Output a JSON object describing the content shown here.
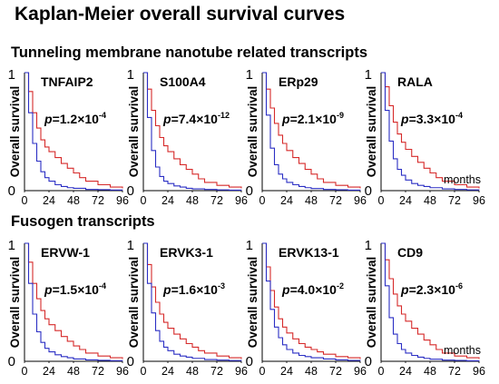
{
  "title": "Kaplan-Meier overall survival curves",
  "sections": [
    {
      "label": "Tunneling membrane nanotube related transcripts",
      "panels": [
        {
          "gene": "TNFAIP2",
          "p": "1.2",
          "exp": "-4",
          "months_label": ""
        },
        {
          "gene": "S100A4",
          "p": "7.4",
          "exp": "-12",
          "months_label": ""
        },
        {
          "gene": "ERp29",
          "p": "2.1",
          "exp": "-9",
          "months_label": ""
        },
        {
          "gene": "RALA",
          "p": "3.3",
          "exp": "-4",
          "months_label": "months"
        }
      ]
    },
    {
      "label": "Fusogen transcripts",
      "panels": [
        {
          "gene": "ERVW-1",
          "p": "1.5",
          "exp": "-4",
          "months_label": ""
        },
        {
          "gene": "ERVK3-1",
          "p": "1.6",
          "exp": "-3",
          "months_label": ""
        },
        {
          "gene": "ERVK13-1",
          "p": "4.0",
          "exp": "-2",
          "months_label": ""
        },
        {
          "gene": "CD9",
          "p": "2.3",
          "exp": "-6",
          "months_label": "months"
        }
      ]
    }
  ],
  "colors": {
    "high": "#d62a2a",
    "low": "#2b2fc4",
    "axis": "#000000"
  },
  "chart_data": [
    {
      "type": "line",
      "title": "TNFAIP2",
      "ylabel": "Overall survival",
      "xlim": [
        0,
        96
      ],
      "ylim": [
        0,
        1
      ],
      "xticks": [
        0,
        24,
        48,
        72,
        96
      ],
      "yticks": [
        0,
        1
      ],
      "annotation": "p=1.2×10^-4",
      "series": [
        {
          "x": [
            0,
            4,
            8,
            12,
            16,
            20,
            24,
            30,
            36,
            42,
            48,
            54,
            60,
            72,
            84,
            96
          ],
          "values": [
            1,
            0.84,
            0.66,
            0.53,
            0.43,
            0.37,
            0.33,
            0.28,
            0.23,
            0.19,
            0.15,
            0.11,
            0.08,
            0.05,
            0.03,
            0.02
          ]
        },
        {
          "x": [
            0,
            4,
            8,
            12,
            16,
            20,
            24,
            30,
            36,
            42,
            48,
            60,
            72,
            84,
            96
          ],
          "values": [
            1,
            0.66,
            0.4,
            0.25,
            0.16,
            0.11,
            0.08,
            0.05,
            0.035,
            0.025,
            0.02,
            0.01,
            0.008,
            0.005,
            0.003
          ]
        }
      ]
    },
    {
      "type": "line",
      "title": "S100A4",
      "ylabel": "Overall survival",
      "xlim": [
        0,
        96
      ],
      "ylim": [
        0,
        1
      ],
      "xticks": [
        0,
        24,
        48,
        72,
        96
      ],
      "yticks": [
        0,
        1
      ],
      "annotation": "p=7.4×10^-12",
      "series": [
        {
          "x": [
            0,
            4,
            8,
            12,
            16,
            20,
            24,
            30,
            36,
            42,
            48,
            54,
            60,
            72,
            84,
            96
          ],
          "values": [
            1,
            0.86,
            0.68,
            0.55,
            0.45,
            0.38,
            0.33,
            0.27,
            0.22,
            0.18,
            0.14,
            0.1,
            0.07,
            0.045,
            0.03,
            0.02
          ]
        },
        {
          "x": [
            0,
            4,
            8,
            12,
            16,
            20,
            24,
            30,
            36,
            42,
            48,
            60,
            72,
            84,
            96
          ],
          "values": [
            1,
            0.62,
            0.34,
            0.2,
            0.12,
            0.08,
            0.06,
            0.04,
            0.03,
            0.02,
            0.015,
            0.01,
            0.006,
            0.004,
            0.002
          ]
        }
      ]
    },
    {
      "type": "line",
      "title": "ERp29",
      "ylabel": "Overall survival",
      "xlim": [
        0,
        96
      ],
      "ylim": [
        0,
        1
      ],
      "xticks": [
        0,
        24,
        48,
        72,
        96
      ],
      "yticks": [
        0,
        1
      ],
      "annotation": "p=2.1×10^-9",
      "series": [
        {
          "x": [
            0,
            4,
            8,
            12,
            16,
            20,
            24,
            30,
            36,
            42,
            48,
            54,
            60,
            72,
            84,
            96
          ],
          "values": [
            1,
            0.86,
            0.7,
            0.57,
            0.47,
            0.4,
            0.34,
            0.28,
            0.23,
            0.18,
            0.14,
            0.1,
            0.07,
            0.045,
            0.03,
            0.02
          ]
        },
        {
          "x": [
            0,
            4,
            8,
            12,
            16,
            20,
            24,
            30,
            36,
            42,
            48,
            60,
            72,
            84,
            96
          ],
          "values": [
            1,
            0.64,
            0.36,
            0.22,
            0.14,
            0.1,
            0.07,
            0.05,
            0.035,
            0.025,
            0.018,
            0.01,
            0.007,
            0.004,
            0.002
          ]
        }
      ]
    },
    {
      "type": "line",
      "title": "RALA",
      "ylabel": "Overall survival",
      "xlim": [
        0,
        96
      ],
      "ylim": [
        0,
        1
      ],
      "xticks": [
        0,
        24,
        48,
        72,
        96
      ],
      "yticks": [
        0,
        1
      ],
      "annotation": "p=3.3×10^-4",
      "series": [
        {
          "x": [
            0,
            4,
            8,
            12,
            16,
            20,
            24,
            30,
            36,
            42,
            48,
            54,
            60,
            72,
            84,
            96
          ],
          "values": [
            1,
            0.88,
            0.72,
            0.58,
            0.48,
            0.41,
            0.35,
            0.29,
            0.24,
            0.19,
            0.15,
            0.11,
            0.08,
            0.05,
            0.03,
            0.02
          ]
        },
        {
          "x": [
            0,
            4,
            8,
            12,
            16,
            20,
            24,
            30,
            36,
            42,
            48,
            60,
            72,
            84,
            96
          ],
          "values": [
            1,
            0.68,
            0.42,
            0.27,
            0.18,
            0.13,
            0.09,
            0.06,
            0.045,
            0.035,
            0.025,
            0.015,
            0.01,
            0.006,
            0.004
          ]
        }
      ]
    },
    {
      "type": "line",
      "title": "ERVW-1",
      "ylabel": "Overall survival",
      "xlim": [
        0,
        96
      ],
      "ylim": [
        0,
        1
      ],
      "xticks": [
        0,
        24,
        48,
        72,
        96
      ],
      "yticks": [
        0,
        1
      ],
      "annotation": "p=1.5×10^-4",
      "series": [
        {
          "x": [
            0,
            4,
            8,
            12,
            16,
            20,
            24,
            30,
            36,
            42,
            48,
            54,
            60,
            72,
            84,
            96
          ],
          "values": [
            1,
            0.84,
            0.66,
            0.53,
            0.43,
            0.36,
            0.31,
            0.26,
            0.21,
            0.17,
            0.13,
            0.1,
            0.07,
            0.045,
            0.03,
            0.02
          ]
        },
        {
          "x": [
            0,
            4,
            8,
            12,
            16,
            20,
            24,
            30,
            36,
            42,
            48,
            60,
            72,
            84,
            96
          ],
          "values": [
            1,
            0.66,
            0.4,
            0.25,
            0.16,
            0.11,
            0.08,
            0.055,
            0.04,
            0.03,
            0.02,
            0.012,
            0.008,
            0.005,
            0.003
          ]
        }
      ]
    },
    {
      "type": "line",
      "title": "ERVK3-1",
      "ylabel": "Overall survival",
      "xlim": [
        0,
        96
      ],
      "ylim": [
        0,
        1
      ],
      "xticks": [
        0,
        24,
        48,
        72,
        96
      ],
      "yticks": [
        0,
        1
      ],
      "annotation": "p=1.6×10^-3",
      "series": [
        {
          "x": [
            0,
            4,
            8,
            12,
            16,
            20,
            24,
            30,
            36,
            42,
            48,
            54,
            60,
            72,
            84,
            96
          ],
          "values": [
            1,
            0.82,
            0.63,
            0.5,
            0.4,
            0.33,
            0.28,
            0.23,
            0.19,
            0.15,
            0.12,
            0.09,
            0.07,
            0.045,
            0.03,
            0.02
          ]
        },
        {
          "x": [
            0,
            4,
            8,
            12,
            16,
            20,
            24,
            30,
            36,
            42,
            48,
            60,
            72,
            84,
            96
          ],
          "values": [
            1,
            0.66,
            0.41,
            0.26,
            0.17,
            0.12,
            0.09,
            0.06,
            0.045,
            0.035,
            0.025,
            0.015,
            0.01,
            0.006,
            0.004
          ]
        }
      ]
    },
    {
      "type": "line",
      "title": "ERVK13-1",
      "ylabel": "Overall survival",
      "xlim": [
        0,
        96
      ],
      "ylim": [
        0,
        1
      ],
      "xticks": [
        0,
        24,
        48,
        72,
        96
      ],
      "yticks": [
        0,
        1
      ],
      "annotation": "p=4.0×10^-2",
      "series": [
        {
          "x": [
            0,
            4,
            8,
            12,
            16,
            20,
            24,
            30,
            36,
            42,
            48,
            54,
            60,
            72,
            84,
            96
          ],
          "values": [
            1,
            0.8,
            0.6,
            0.46,
            0.36,
            0.29,
            0.24,
            0.19,
            0.15,
            0.12,
            0.1,
            0.08,
            0.06,
            0.04,
            0.03,
            0.02
          ]
        },
        {
          "x": [
            0,
            4,
            8,
            12,
            16,
            20,
            24,
            30,
            36,
            42,
            48,
            60,
            72,
            84,
            96
          ],
          "values": [
            1,
            0.68,
            0.44,
            0.29,
            0.2,
            0.14,
            0.1,
            0.07,
            0.05,
            0.04,
            0.03,
            0.02,
            0.012,
            0.007,
            0.004
          ]
        }
      ]
    },
    {
      "type": "line",
      "title": "CD9",
      "ylabel": "Overall survival",
      "xlim": [
        0,
        96
      ],
      "ylim": [
        0,
        1
      ],
      "xticks": [
        0,
        24,
        48,
        72,
        96
      ],
      "yticks": [
        0,
        1
      ],
      "annotation": "p=2.3×10^-6",
      "series": [
        {
          "x": [
            0,
            4,
            8,
            12,
            16,
            20,
            24,
            30,
            36,
            42,
            48,
            54,
            60,
            72,
            84,
            96
          ],
          "values": [
            1,
            0.86,
            0.7,
            0.57,
            0.47,
            0.4,
            0.34,
            0.28,
            0.23,
            0.18,
            0.14,
            0.1,
            0.07,
            0.045,
            0.03,
            0.02
          ]
        },
        {
          "x": [
            0,
            4,
            8,
            12,
            16,
            20,
            24,
            30,
            36,
            42,
            48,
            60,
            72,
            84,
            96
          ],
          "values": [
            1,
            0.64,
            0.37,
            0.23,
            0.15,
            0.1,
            0.07,
            0.05,
            0.035,
            0.025,
            0.018,
            0.01,
            0.007,
            0.004,
            0.002
          ]
        }
      ]
    }
  ]
}
